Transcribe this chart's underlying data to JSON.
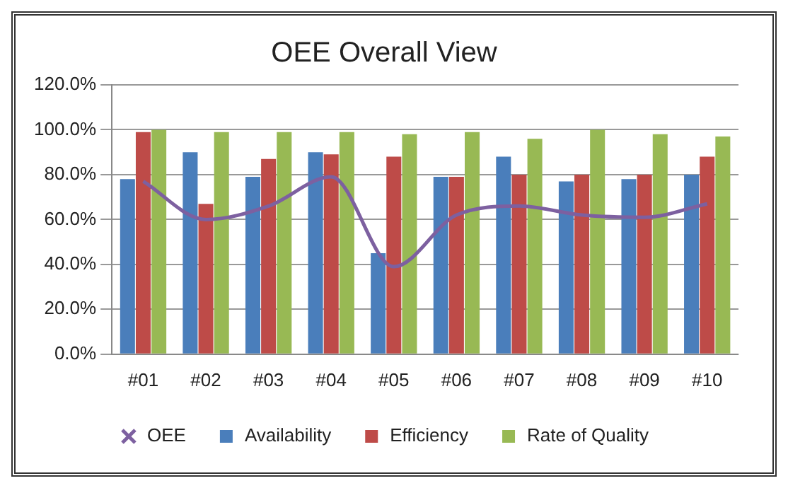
{
  "chart_data": {
    "type": "bar",
    "title": "OEE Overall View",
    "categories": [
      "#01",
      "#02",
      "#03",
      "#04",
      "#05",
      "#06",
      "#07",
      "#08",
      "#09",
      "#10"
    ],
    "series": [
      {
        "name": "Availability",
        "color": "#4a7ebb",
        "values": [
          78,
          90,
          79,
          90,
          45,
          79,
          88,
          77,
          78,
          80
        ]
      },
      {
        "name": "Efficiency",
        "color": "#be4b48",
        "values": [
          99,
          67,
          87,
          89,
          88,
          79,
          80,
          80,
          80,
          88
        ]
      },
      {
        "name": "Rate of Quality",
        "color": "#98b954",
        "values": [
          100,
          99,
          99,
          99,
          98,
          99,
          96,
          100,
          98,
          97
        ]
      },
      {
        "name": "OEE",
        "type": "line",
        "color": "#7d60a0",
        "values": [
          77,
          60,
          66,
          79,
          39,
          62,
          66,
          62,
          61,
          67
        ]
      }
    ],
    "ylim": [
      0,
      120
    ],
    "yticks": [
      {
        "value": 0,
        "label": "0.0%"
      },
      {
        "value": 20,
        "label": "20.0%"
      },
      {
        "value": 40,
        "label": "40.0%"
      },
      {
        "value": 60,
        "label": "60.0%"
      },
      {
        "value": 80,
        "label": "80.0%"
      },
      {
        "value": 100,
        "label": "100.0%"
      },
      {
        "value": 120,
        "label": "120.0%"
      }
    ],
    "grid": "y",
    "legend": "bottom",
    "marker": "none"
  }
}
